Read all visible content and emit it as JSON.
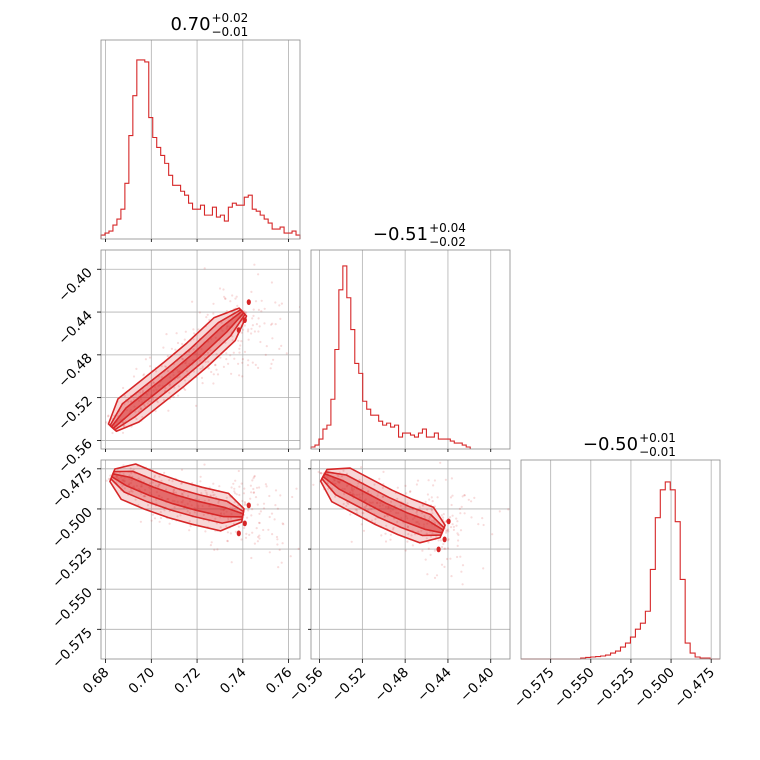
{
  "chart_data": {
    "type": "corner",
    "color": "#d62728",
    "grid": true,
    "parameters": [
      {
        "title": {
          "median": "0.70",
          "plus": "+0.02",
          "minus": "−0.01"
        },
        "range": [
          0.678,
          0.765
        ],
        "ticks": [
          0.68,
          0.7,
          0.72,
          0.74,
          0.76
        ],
        "tick_labels": [
          "0.68",
          "0.70",
          "0.72",
          "0.74",
          "0.76"
        ]
      },
      {
        "title": {
          "median": "−0.51",
          "plus": "+0.04",
          "minus": "−0.02"
        },
        "range": [
          -0.568,
          -0.382
        ],
        "ticks": [
          -0.56,
          -0.52,
          -0.48,
          -0.44,
          -0.4
        ],
        "tick_labels": [
          "−0.56",
          "−0.52",
          "−0.48",
          "−0.44",
          "−0.40"
        ]
      },
      {
        "title": {
          "median": "−0.50",
          "plus": "+0.01",
          "minus": "−0.01"
        },
        "range": [
          -0.5935,
          -0.4695
        ],
        "ticks": [
          -0.575,
          -0.55,
          -0.525,
          -0.5,
          -0.475
        ],
        "tick_labels": [
          "−0.575",
          "−0.550",
          "−0.525",
          "−0.500",
          "−0.475"
        ]
      }
    ],
    "histograms": [
      {
        "param": 0,
        "edges_start": 0.678,
        "bin_width": 0.00174,
        "values": [
          0.02,
          0.03,
          0.04,
          0.07,
          0.1,
          0.15,
          0.28,
          0.52,
          0.72,
          0.9,
          0.9,
          0.89,
          0.61,
          0.51,
          0.46,
          0.42,
          0.38,
          0.32,
          0.27,
          0.27,
          0.24,
          0.22,
          0.18,
          0.15,
          0.15,
          0.17,
          0.12,
          0.12,
          0.16,
          0.11,
          0.12,
          0.09,
          0.16,
          0.18,
          0.17,
          0.17,
          0.21,
          0.22,
          0.15,
          0.14,
          0.12,
          0.1,
          0.08,
          0.05,
          0.05,
          0.06,
          0.03,
          0.03,
          0.04,
          0.02
        ]
      },
      {
        "param": 1,
        "edges_start": -0.568,
        "bin_width": 0.00372,
        "values": [
          0.01,
          0.02,
          0.05,
          0.1,
          0.12,
          0.25,
          0.5,
          0.8,
          0.92,
          0.76,
          0.6,
          0.43,
          0.38,
          0.24,
          0.2,
          0.17,
          0.17,
          0.14,
          0.12,
          0.13,
          0.11,
          0.12,
          0.06,
          0.08,
          0.08,
          0.07,
          0.06,
          0.08,
          0.1,
          0.06,
          0.06,
          0.08,
          0.05,
          0.05,
          0.05,
          0.04,
          0.03,
          0.03,
          0.02,
          0.01
        ]
      },
      {
        "param": 2,
        "edges_start": -0.5935,
        "bin_width": 0.0031,
        "values": [
          0.0,
          0.0,
          0.0,
          0.0,
          0.0,
          0.0,
          0.0,
          0.0,
          0.0,
          0.0,
          0.0,
          0.0,
          0.005,
          0.008,
          0.01,
          0.012,
          0.015,
          0.02,
          0.03,
          0.04,
          0.06,
          0.08,
          0.11,
          0.15,
          0.18,
          0.24,
          0.45,
          0.71,
          0.85,
          0.89,
          0.85,
          0.69,
          0.4,
          0.08,
          0.03,
          0.01,
          0.005,
          0.005,
          0.0,
          0.0
        ]
      }
    ],
    "pairs": [
      {
        "x_param": 0,
        "y_param": 1,
        "ridge": [
          [
            0.683,
            -0.548
          ],
          [
            0.69,
            -0.532
          ],
          [
            0.7,
            -0.515
          ],
          [
            0.71,
            -0.498
          ],
          [
            0.72,
            -0.48
          ],
          [
            0.732,
            -0.456
          ],
          [
            0.74,
            -0.44
          ]
        ],
        "levels": [
          {
            "half_width": 0.0045,
            "alpha": 0.18
          },
          {
            "half_width": 0.0028,
            "alpha": 0.3
          },
          {
            "half_width": 0.0015,
            "alpha": 0.45
          }
        ]
      },
      {
        "x_param": 0,
        "y_param": 2,
        "ridge": [
          [
            0.683,
            -0.479
          ],
          [
            0.69,
            -0.483
          ],
          [
            0.7,
            -0.489
          ],
          [
            0.71,
            -0.494
          ],
          [
            0.72,
            -0.498
          ],
          [
            0.732,
            -0.502
          ],
          [
            0.74,
            -0.504
          ]
        ],
        "levels": [
          {
            "half_width": 0.004,
            "alpha": 0.18
          },
          {
            "half_width": 0.0025,
            "alpha": 0.3
          },
          {
            "half_width": 0.0013,
            "alpha": 0.45
          }
        ]
      },
      {
        "x_param": 1,
        "y_param": 2,
        "ridge": [
          [
            -0.556,
            -0.479
          ],
          [
            -0.54,
            -0.485
          ],
          [
            -0.52,
            -0.492
          ],
          [
            -0.5,
            -0.499
          ],
          [
            -0.48,
            -0.505
          ],
          [
            -0.46,
            -0.51
          ],
          [
            -0.445,
            -0.514
          ]
        ],
        "levels": [
          {
            "half_width": 0.004,
            "alpha": 0.18
          },
          {
            "half_width": 0.0025,
            "alpha": 0.3
          },
          {
            "half_width": 0.0013,
            "alpha": 0.45
          }
        ]
      }
    ]
  }
}
